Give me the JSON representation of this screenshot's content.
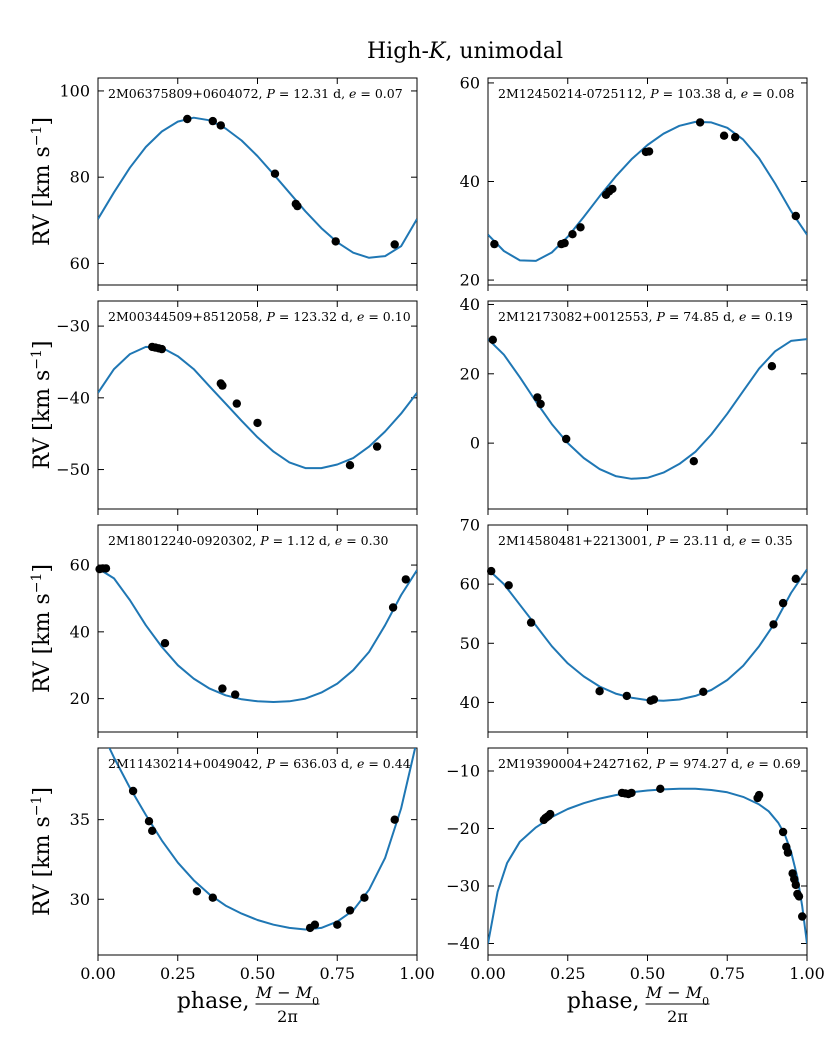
{
  "figure": {
    "title": "High-K, unimodal",
    "xlabel_prefix": "phase,",
    "xlabel_numerator": "M − M",
    "xlabel_subscript": "0",
    "xlabel_denominator": "2π",
    "ylabel_main": "RV [km s",
    "ylabel_sup": "−1",
    "ylabel_end": "]",
    "curve_color": "#1f77b4",
    "point_color": "#000000"
  },
  "chart_data": [
    {
      "type": "line",
      "id": "2M06375809+0604072",
      "period": "P = 12.31 d",
      "ecc": "e = 0.07",
      "xlim": [
        0,
        1
      ],
      "ylim": [
        55,
        103
      ],
      "yticks": [
        60,
        80,
        100
      ],
      "xticks": [
        "",
        "",
        "",
        "",
        ""
      ],
      "curve": {
        "x": [
          0,
          0.05,
          0.1,
          0.15,
          0.2,
          0.25,
          0.3,
          0.35,
          0.4,
          0.45,
          0.5,
          0.55,
          0.6,
          0.65,
          0.7,
          0.75,
          0.8,
          0.85,
          0.9,
          0.95,
          1
        ],
        "y": [
          70.3,
          76.5,
          82.2,
          87.0,
          90.6,
          92.9,
          93.8,
          93.2,
          91.3,
          88.5,
          84.9,
          80.7,
          76.4,
          72.1,
          68.2,
          64.9,
          62.5,
          61.3,
          61.7,
          64.0,
          70.3
        ]
      },
      "points": {
        "x": [
          0.28,
          0.36,
          0.385,
          0.555,
          0.62,
          0.625,
          0.745,
          0.93
        ],
        "y": [
          93.5,
          93.0,
          92.0,
          80.8,
          73.8,
          73.3,
          65.1,
          64.4
        ]
      }
    },
    {
      "type": "line",
      "id": "2M12450214-0725112",
      "period": "P = 103.38 d",
      "ecc": "e = 0.08",
      "xlim": [
        0,
        1
      ],
      "ylim": [
        19,
        61
      ],
      "yticks": [
        20,
        40,
        60
      ],
      "xticks": [
        "",
        "",
        "",
        "",
        ""
      ],
      "curve": {
        "x": [
          0,
          0.05,
          0.1,
          0.15,
          0.2,
          0.25,
          0.3,
          0.35,
          0.4,
          0.45,
          0.5,
          0.55,
          0.6,
          0.65,
          0.7,
          0.75,
          0.8,
          0.85,
          0.9,
          0.95,
          1
        ],
        "y": [
          29.2,
          25.9,
          24.0,
          23.9,
          25.6,
          28.8,
          32.8,
          37.0,
          41.0,
          44.5,
          47.4,
          49.7,
          51.3,
          52.1,
          52.0,
          50.9,
          48.5,
          44.7,
          39.6,
          34.0,
          29.2
        ]
      },
      "points": {
        "x": [
          0.02,
          0.23,
          0.24,
          0.265,
          0.29,
          0.37,
          0.38,
          0.39,
          0.495,
          0.505,
          0.665,
          0.74,
          0.775,
          0.965
        ],
        "y": [
          27.3,
          27.3,
          27.5,
          29.3,
          30.7,
          37.3,
          38.0,
          38.5,
          46.0,
          46.1,
          52.0,
          49.3,
          49.0,
          33.0
        ]
      }
    },
    {
      "type": "line",
      "id": "2M00344509+8512058",
      "period": "P = 123.32 d",
      "ecc": "e = 0.10",
      "xlim": [
        0,
        1
      ],
      "ylim": [
        -55.5,
        -26.5
      ],
      "yticks": [
        -50,
        -40,
        -30
      ],
      "xticks": [
        "",
        "",
        "",
        "",
        ""
      ],
      "curve": {
        "x": [
          0,
          0.05,
          0.1,
          0.15,
          0.2,
          0.25,
          0.3,
          0.35,
          0.4,
          0.45,
          0.5,
          0.55,
          0.6,
          0.65,
          0.7,
          0.75,
          0.8,
          0.85,
          0.9,
          0.95,
          1
        ],
        "y": [
          -39.3,
          -36.0,
          -33.9,
          -32.9,
          -33.0,
          -34.2,
          -36.0,
          -38.4,
          -40.8,
          -43.2,
          -45.5,
          -47.5,
          -49.0,
          -49.8,
          -49.8,
          -49.3,
          -48.4,
          -46.8,
          -44.7,
          -42.2,
          -39.3
        ]
      },
      "points": {
        "x": [
          0.17,
          0.18,
          0.19,
          0.2,
          0.385,
          0.39,
          0.435,
          0.5,
          0.79,
          0.875
        ],
        "y": [
          -32.9,
          -33.0,
          -33.1,
          -33.2,
          -38.0,
          -38.3,
          -40.8,
          -43.5,
          -49.4,
          -46.8
        ]
      }
    },
    {
      "type": "line",
      "id": "2M12173082+0012553",
      "period": "P = 74.85 d",
      "ecc": "e = 0.19",
      "xlim": [
        0,
        1
      ],
      "ylim": [
        -19,
        41
      ],
      "yticks": [
        0,
        20,
        40
      ],
      "xticks": [
        "",
        "",
        "",
        "",
        ""
      ],
      "curve": {
        "x": [
          0,
          0.05,
          0.1,
          0.15,
          0.2,
          0.25,
          0.3,
          0.35,
          0.4,
          0.45,
          0.5,
          0.55,
          0.6,
          0.65,
          0.7,
          0.75,
          0.8,
          0.85,
          0.9,
          0.95,
          1
        ],
        "y": [
          30.0,
          25.5,
          19.0,
          12.0,
          5.5,
          0.0,
          -4.3,
          -7.5,
          -9.5,
          -10.3,
          -10.0,
          -8.5,
          -6.0,
          -2.5,
          2.5,
          8.5,
          15.0,
          21.5,
          26.5,
          29.5,
          30.0
        ]
      },
      "points": {
        "x": [
          0.015,
          0.155,
          0.165,
          0.245,
          0.645,
          0.89
        ],
        "y": [
          29.8,
          13.2,
          11.3,
          1.2,
          -5.2,
          22.2
        ]
      }
    },
    {
      "type": "line",
      "id": "2M18012240-0920302",
      "period": "P = 1.12 d",
      "ecc": "e = 0.30",
      "xlim": [
        0,
        1
      ],
      "ylim": [
        10,
        72
      ],
      "yticks": [
        20,
        40,
        60
      ],
      "xticks": [
        "",
        "",
        "",
        "",
        ""
      ],
      "curve": {
        "x": [
          0,
          0.05,
          0.1,
          0.15,
          0.2,
          0.25,
          0.3,
          0.35,
          0.4,
          0.45,
          0.5,
          0.55,
          0.6,
          0.65,
          0.7,
          0.75,
          0.8,
          0.85,
          0.9,
          0.95,
          1
        ],
        "y": [
          59.0,
          56.0,
          49.5,
          42.0,
          35.5,
          30.0,
          26.0,
          23.0,
          21.0,
          19.8,
          19.2,
          19.0,
          19.2,
          20.0,
          21.8,
          24.5,
          28.5,
          34.0,
          42.0,
          51.0,
          58.5
        ]
      },
      "points": {
        "x": [
          0.005,
          0.015,
          0.025,
          0.21,
          0.39,
          0.43,
          0.925,
          0.965
        ],
        "y": [
          58.8,
          59.0,
          59.0,
          36.6,
          23.0,
          21.2,
          47.3,
          55.7
        ]
      }
    },
    {
      "type": "line",
      "id": "2M14580481+2213001",
      "period": "P = 23.11 d",
      "ecc": "e = 0.35",
      "xlim": [
        0,
        1
      ],
      "ylim": [
        35,
        70
      ],
      "yticks": [
        40,
        50,
        60,
        70
      ],
      "xticks": [
        "",
        "",
        "",
        "",
        ""
      ],
      "curve": {
        "x": [
          0,
          0.05,
          0.1,
          0.15,
          0.2,
          0.25,
          0.3,
          0.35,
          0.4,
          0.45,
          0.5,
          0.55,
          0.6,
          0.65,
          0.7,
          0.75,
          0.8,
          0.85,
          0.9,
          0.95,
          1
        ],
        "y": [
          62.5,
          60.0,
          56.5,
          53.0,
          49.5,
          46.6,
          44.4,
          42.7,
          41.5,
          40.8,
          40.4,
          40.3,
          40.5,
          41.1,
          42.1,
          43.8,
          46.2,
          49.5,
          53.5,
          58.5,
          62.5
        ]
      },
      "points": {
        "x": [
          0.01,
          0.065,
          0.135,
          0.35,
          0.435,
          0.51,
          0.52,
          0.675,
          0.895,
          0.925,
          0.965
        ],
        "y": [
          62.2,
          59.8,
          53.5,
          41.9,
          41.1,
          40.3,
          40.5,
          41.8,
          53.2,
          56.8,
          60.9
        ]
      }
    },
    {
      "type": "line",
      "id": "2M11430214+0049042",
      "period": "P = 636.03 d",
      "ecc": "e = 0.44",
      "xlim": [
        0,
        1
      ],
      "ylim": [
        26.5,
        39.5
      ],
      "yticks": [
        30,
        35
      ],
      "xticks": [
        "0.00",
        "0.25",
        "0.50",
        "0.75",
        "1.00"
      ],
      "curve": {
        "x": [
          0,
          0.05,
          0.1,
          0.15,
          0.2,
          0.25,
          0.3,
          0.35,
          0.4,
          0.45,
          0.5,
          0.55,
          0.6,
          0.65,
          0.7,
          0.75,
          0.8,
          0.85,
          0.9,
          0.95,
          1
        ],
        "y": [
          41.0,
          38.9,
          37.0,
          35.3,
          33.7,
          32.3,
          31.2,
          30.3,
          29.6,
          29.1,
          28.7,
          28.4,
          28.2,
          28.1,
          28.2,
          28.6,
          29.3,
          30.6,
          32.6,
          35.7,
          40.0
        ]
      },
      "points": {
        "x": [
          0.11,
          0.16,
          0.17,
          0.31,
          0.36,
          0.665,
          0.68,
          0.75,
          0.79,
          0.835,
          0.93
        ],
        "y": [
          36.8,
          34.9,
          34.3,
          30.5,
          30.1,
          28.2,
          28.4,
          28.4,
          29.3,
          30.1,
          35.0
        ]
      }
    },
    {
      "type": "line",
      "id": "2M19390004+2427162",
      "period": "P = 974.27 d",
      "ecc": "e = 0.69",
      "xlim": [
        0,
        1
      ],
      "ylim": [
        -42,
        -6
      ],
      "yticks": [
        -40,
        -30,
        -20,
        -10
      ],
      "xticks": [
        "0.00",
        "0.25",
        "0.50",
        "0.75",
        "1.00"
      ],
      "curve": {
        "x": [
          0,
          0.01,
          0.03,
          0.06,
          0.1,
          0.15,
          0.2,
          0.25,
          0.3,
          0.35,
          0.4,
          0.45,
          0.5,
          0.55,
          0.6,
          0.65,
          0.7,
          0.75,
          0.8,
          0.85,
          0.88,
          0.91,
          0.93,
          0.95,
          0.97,
          0.985,
          1
        ],
        "y": [
          -40.0,
          -37.0,
          -31.0,
          -26.0,
          -22.3,
          -19.8,
          -18.0,
          -16.6,
          -15.6,
          -14.8,
          -14.2,
          -13.7,
          -13.4,
          -13.2,
          -13.1,
          -13.1,
          -13.3,
          -13.7,
          -14.5,
          -15.8,
          -17.0,
          -19.0,
          -21.0,
          -24.0,
          -28.5,
          -33.5,
          -40.0
        ]
      },
      "points": {
        "x": [
          0.175,
          0.18,
          0.185,
          0.19,
          0.195,
          0.42,
          0.43,
          0.44,
          0.45,
          0.54,
          0.845,
          0.85,
          0.925,
          0.935,
          0.94,
          0.955,
          0.96,
          0.965,
          0.97,
          0.975,
          0.985
        ],
        "y": [
          -18.5,
          -18.2,
          -18.0,
          -17.8,
          -17.5,
          -13.8,
          -13.9,
          -14.0,
          -13.8,
          -13.1,
          -14.7,
          -14.2,
          -20.6,
          -23.2,
          -24.2,
          -27.8,
          -28.8,
          -29.8,
          -31.4,
          -31.8,
          -35.3
        ]
      }
    }
  ]
}
